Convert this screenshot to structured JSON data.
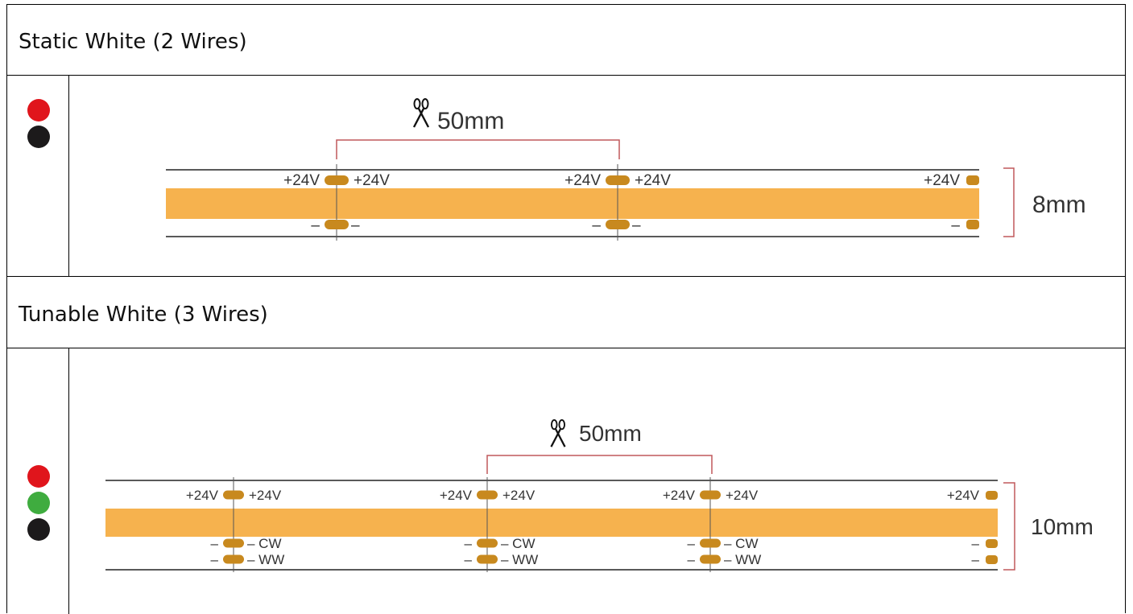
{
  "sections": [
    {
      "title": "Static White (2 Wires)",
      "wire_colors": [
        "#e0151c",
        "#1c1a1b"
      ],
      "cut_length": "50mm",
      "width_label": "8mm",
      "top_label": "+24V",
      "minus_label": "–"
    },
    {
      "title": "Tunable White (3 Wires)",
      "wire_colors": [
        "#e0151c",
        "#3fac3f",
        "#1c1a1b"
      ],
      "cut_length": "50mm",
      "width_label": "10mm",
      "top_label": "+24V",
      "minus_label": "–",
      "cw_label": "– CW",
      "ww_label": "– WW"
    }
  ],
  "colors": {
    "strip": "#f6b24e",
    "pad": "#c8891e",
    "bracket": "#c0595c",
    "border": "#000000"
  }
}
